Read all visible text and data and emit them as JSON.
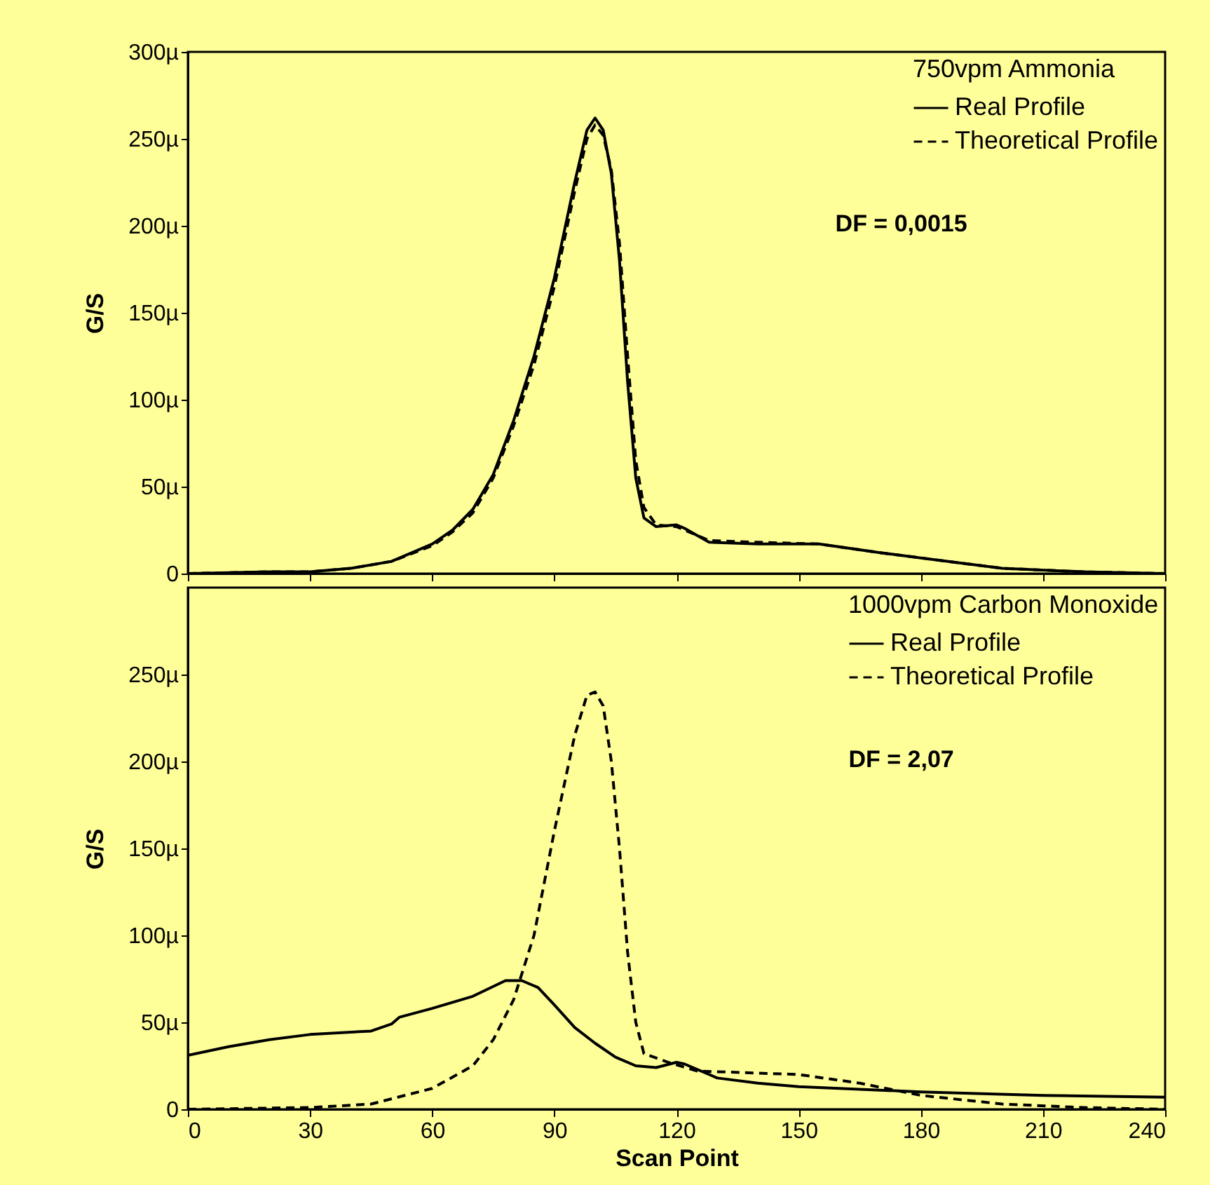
{
  "chart_data": [
    {
      "type": "line",
      "legend_title": "750vpm Ammonia",
      "ylabel": "G/S",
      "annotations": [
        "DF = 0,0015"
      ],
      "legend": "top right",
      "tick_labels": "y",
      "xlim": [
        0,
        240
      ],
      "xticks": [
        0,
        30,
        60,
        90,
        120,
        150,
        180,
        210,
        240
      ],
      "ylim": [
        0,
        300
      ],
      "yticks": [
        0,
        {
          "value": 50,
          "label": "50µ"
        },
        {
          "value": 100,
          "label": "100µ"
        },
        {
          "value": 150,
          "label": "150µ"
        },
        {
          "value": 200,
          "label": "200µ"
        },
        {
          "value": 250,
          "label": "250µ"
        },
        {
          "value": 300,
          "label": "300µ"
        }
      ],
      "series": [
        {
          "name": "Real Profile",
          "color": "#000000",
          "line_style": "solid",
          "x": [
            0,
            20,
            30,
            40,
            50,
            60,
            65,
            70,
            75,
            80,
            85,
            90,
            95,
            98,
            100,
            102,
            104,
            106,
            108,
            110,
            112,
            115,
            120,
            122,
            128,
            140,
            155,
            170,
            180,
            200,
            220,
            240
          ],
          "values": [
            0,
            1,
            1,
            3,
            7,
            17,
            25,
            37,
            57,
            88,
            125,
            170,
            225,
            255,
            262,
            255,
            230,
            180,
            110,
            55,
            32,
            27,
            28,
            26,
            18,
            17,
            17,
            12,
            9,
            3,
            1,
            0
          ]
        },
        {
          "name": "Theoretical Profile",
          "color": "#000000",
          "line_style": "dashed",
          "x": [
            0,
            20,
            30,
            40,
            50,
            60,
            65,
            70,
            75,
            80,
            85,
            90,
            95,
            98,
            100,
            102,
            104,
            106,
            108,
            110,
            112,
            115,
            120,
            122,
            128,
            140,
            155,
            170,
            180,
            200,
            220,
            240
          ],
          "values": [
            0,
            1,
            1,
            3,
            7,
            16,
            24,
            35,
            55,
            85,
            120,
            165,
            220,
            250,
            258,
            252,
            232,
            190,
            125,
            65,
            38,
            28,
            27,
            25,
            19,
            18,
            17,
            12,
            9,
            3,
            1,
            0
          ]
        }
      ]
    },
    {
      "type": "line",
      "legend_title": "1000vpm Carbon Monoxide",
      "ylabel": "G/S",
      "xlabel": "Scan Point",
      "annotations": [
        "DF = 2,07"
      ],
      "legend": "top right",
      "xlim": [
        0,
        240
      ],
      "xticks": [
        0,
        30,
        60,
        90,
        120,
        150,
        180,
        210,
        240
      ],
      "ylim": [
        0,
        300
      ],
      "yticks": [
        0,
        {
          "value": 50,
          "label": "50µ"
        },
        {
          "value": 100,
          "label": "100µ"
        },
        {
          "value": 150,
          "label": "150µ"
        },
        {
          "value": 200,
          "label": "200µ"
        },
        {
          "value": 250,
          "label": "250µ"
        }
      ],
      "series": [
        {
          "name": "Real Profile",
          "color": "#000000",
          "line_style": "solid",
          "x": [
            0,
            10,
            20,
            30,
            45,
            50,
            52,
            60,
            70,
            78,
            82,
            86,
            90,
            95,
            100,
            105,
            110,
            115,
            120,
            122,
            130,
            140,
            150,
            180,
            210,
            240
          ],
          "values": [
            31,
            36,
            40,
            43,
            45,
            49,
            53,
            58,
            65,
            74,
            74,
            70,
            60,
            47,
            38,
            30,
            25,
            24,
            27,
            26,
            18,
            15,
            13,
            10,
            8,
            7
          ]
        },
        {
          "name": "Theoretical Profile",
          "color": "#000000",
          "line_style": "dashed",
          "x": [
            0,
            30,
            45,
            60,
            70,
            75,
            80,
            85,
            90,
            95,
            98,
            100,
            102,
            104,
            106,
            108,
            110,
            112,
            118,
            125,
            150,
            165,
            180,
            200,
            220,
            240
          ],
          "values": [
            0,
            1,
            3,
            12,
            25,
            40,
            63,
            100,
            160,
            215,
            238,
            240,
            232,
            200,
            150,
            90,
            50,
            32,
            27,
            22,
            20,
            15,
            8,
            3,
            1,
            0
          ]
        }
      ]
    }
  ]
}
